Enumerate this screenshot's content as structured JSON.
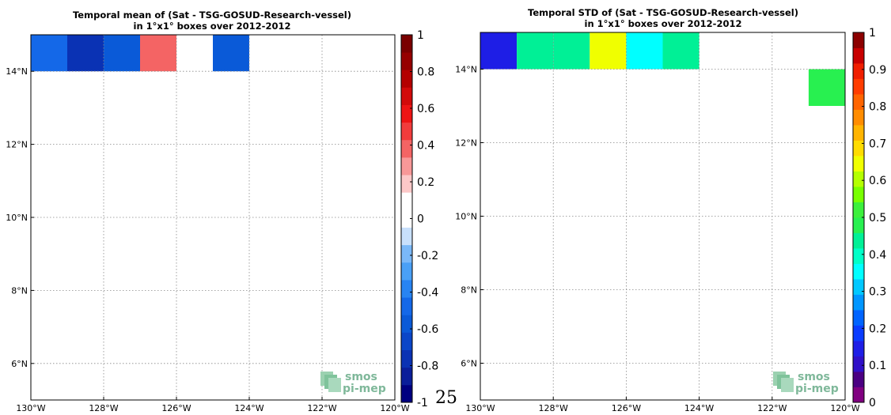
{
  "page_number": "25",
  "logo": {
    "line1": "smos",
    "line2": "pi-mep"
  },
  "chart_data": [
    {
      "type": "heatmap",
      "title_line1": "Temporal mean of (Sat - TSG-GOSUD-Research-vessel)",
      "title_line2": "in 1°x1° boxes over 2012-2012",
      "xlim": [
        -130,
        -120
      ],
      "ylim": [
        5,
        15
      ],
      "x_ticks": [
        {
          "value": -130,
          "label": "130°W"
        },
        {
          "value": -128,
          "label": "128°W"
        },
        {
          "value": -126,
          "label": "126°W"
        },
        {
          "value": -124,
          "label": "124°W"
        },
        {
          "value": -122,
          "label": "122°W"
        },
        {
          "value": -120,
          "label": "120°W"
        }
      ],
      "y_ticks": [
        {
          "value": 6,
          "label": "6°N"
        },
        {
          "value": 8,
          "label": "8°N"
        },
        {
          "value": 10,
          "label": "10°N"
        },
        {
          "value": 12,
          "label": "12°N"
        },
        {
          "value": 14,
          "label": "14°N"
        }
      ],
      "grid": true,
      "cells": [
        {
          "lon0": -130,
          "lat0": 14,
          "value": -0.45
        },
        {
          "lon0": -129,
          "lat0": 14,
          "value": -0.72
        },
        {
          "lon0": -128,
          "lat0": 14,
          "value": -0.58
        },
        {
          "lon0": -127,
          "lat0": 14,
          "value": 0.38
        },
        {
          "lon0": -125,
          "lat0": 14,
          "value": -0.58
        }
      ],
      "colorbar": {
        "min": -1,
        "max": 1,
        "tick_labels": [
          "-1",
          "-0.8",
          "-0.6",
          "-0.4",
          "-0.2",
          "0",
          "0.2",
          "0.4",
          "0.6",
          "0.8",
          "1"
        ],
        "colors": [
          "#000080",
          "#0a1e9a",
          "#0a32b4",
          "#0a46c8",
          "#0a5ad8",
          "#1468e8",
          "#2884f2",
          "#4aa0f6",
          "#7ab8f8",
          "#c8e0fc",
          "#ffffff",
          "#ffffff",
          "#fcc8c8",
          "#f89898",
          "#f46464",
          "#f23c3c",
          "#ee1414",
          "#d20a0a",
          "#b40000",
          "#960000",
          "#7a0000"
        ]
      }
    },
    {
      "type": "heatmap",
      "title_line1": "Temporal STD of (Sat - TSG-GOSUD-Research-vessel)",
      "title_line2": "in 1°x1° boxes over 2012-2012",
      "xlim": [
        -130,
        -120
      ],
      "ylim": [
        5,
        15
      ],
      "x_ticks": [
        {
          "value": -130,
          "label": "130°W"
        },
        {
          "value": -128,
          "label": "128°W"
        },
        {
          "value": -126,
          "label": "126°W"
        },
        {
          "value": -124,
          "label": "124°W"
        },
        {
          "value": -122,
          "label": "122°W"
        },
        {
          "value": -120,
          "label": "120°W"
        }
      ],
      "y_ticks": [
        {
          "value": 6,
          "label": "6°N"
        },
        {
          "value": 8,
          "label": "8°N"
        },
        {
          "value": 10,
          "label": "10°N"
        },
        {
          "value": 12,
          "label": "12°N"
        },
        {
          "value": 14,
          "label": "14°N"
        }
      ],
      "grid": true,
      "cells": [
        {
          "lon0": -130,
          "lat0": 14,
          "value": 0.14
        },
        {
          "lon0": -129,
          "lat0": 14,
          "value": 0.43
        },
        {
          "lon0": -128,
          "lat0": 14,
          "value": 0.43
        },
        {
          "lon0": -127,
          "lat0": 14,
          "value": 0.64
        },
        {
          "lon0": -126,
          "lat0": 14,
          "value": 0.37
        },
        {
          "lon0": -125,
          "lat0": 14,
          "value": 0.43
        },
        {
          "lon0": -121,
          "lat0": 13,
          "value": 0.47
        }
      ],
      "colorbar": {
        "min": 0,
        "max": 1,
        "tick_labels": [
          "0",
          "0.1",
          "0.2",
          "0.3",
          "0.4",
          "0.5",
          "0.6",
          "0.7",
          "0.8",
          "0.9",
          "1"
        ],
        "colors": [
          "#800080",
          "#4b0082",
          "#3010c8",
          "#1e1ee6",
          "#0a3cff",
          "#0064ff",
          "#0096ff",
          "#00c8ff",
          "#00ffff",
          "#00ffc8",
          "#00f096",
          "#28f050",
          "#3cf03c",
          "#78ff00",
          "#b4ff00",
          "#f0ff00",
          "#ffdc00",
          "#ffb400",
          "#ff8c00",
          "#ff6400",
          "#ff3c00",
          "#f01e00",
          "#c80000",
          "#8c0000"
        ]
      }
    }
  ]
}
